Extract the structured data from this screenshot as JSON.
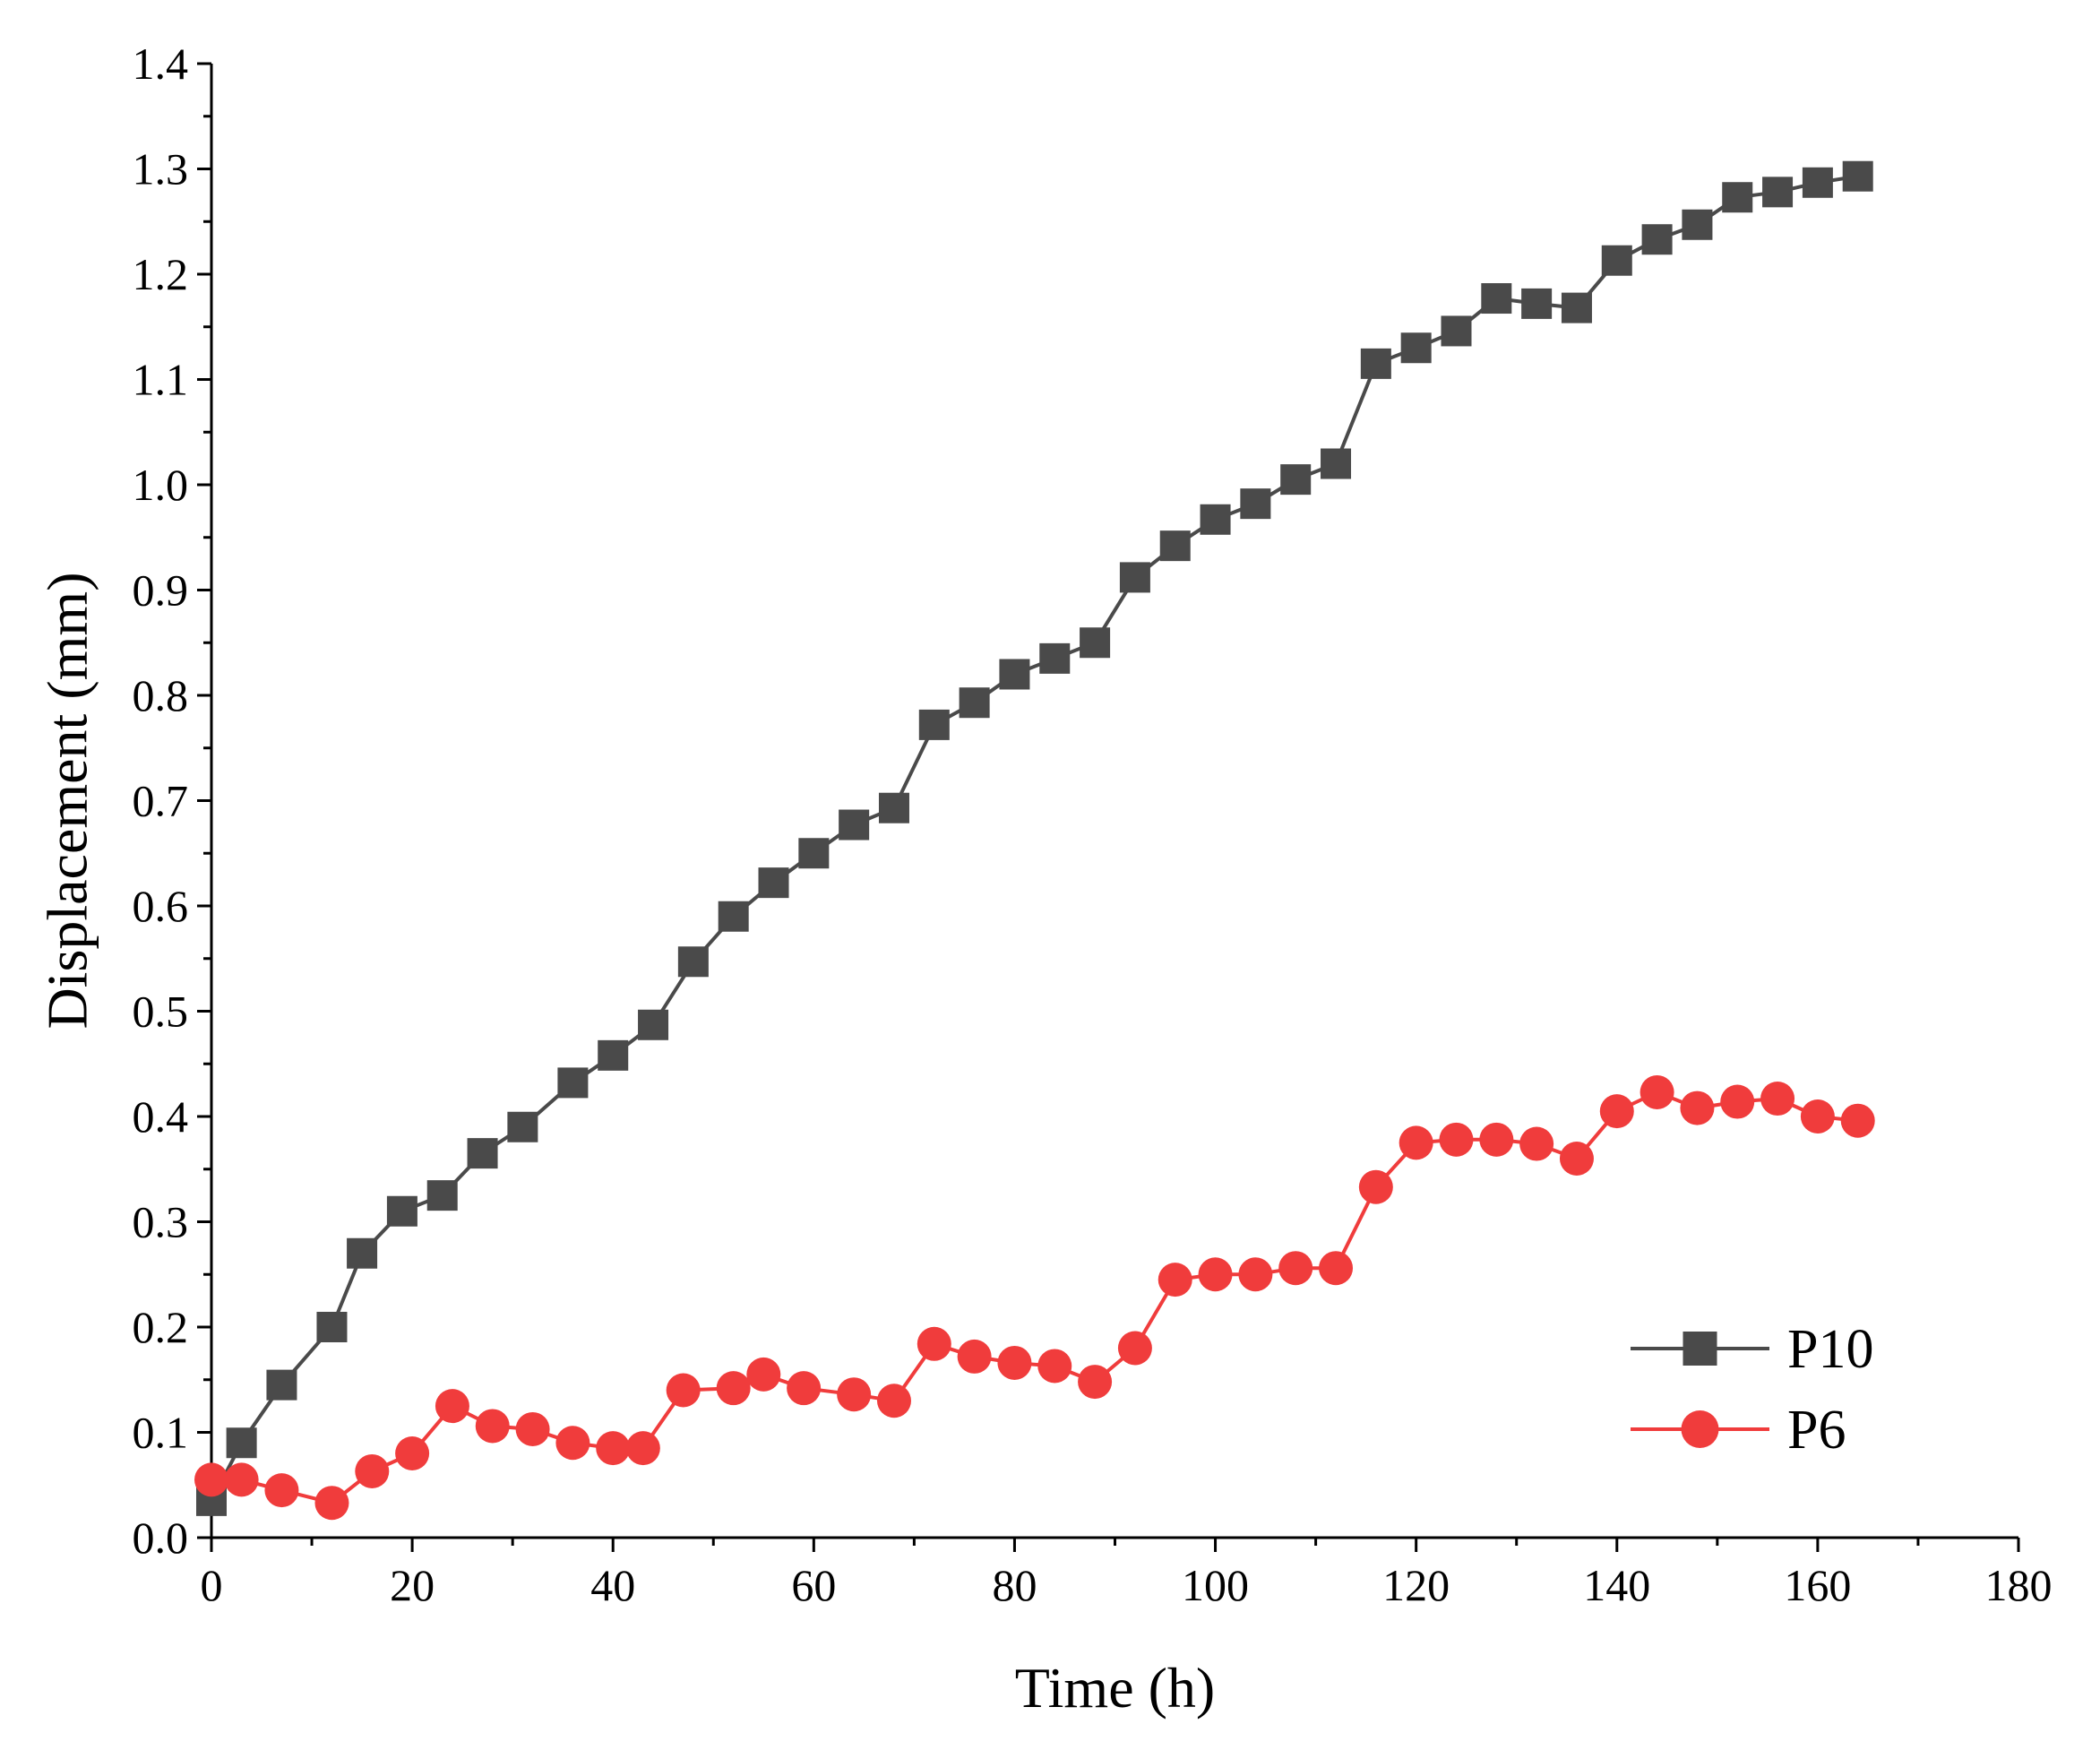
{
  "chart_data": {
    "type": "line",
    "title": "",
    "xlabel": "Time (h)",
    "ylabel": "Displacement (mm)",
    "xlim": [
      0,
      180
    ],
    "ylim": [
      0.0,
      1.4
    ],
    "xticks": [
      "0",
      "20",
      "40",
      "60",
      "80",
      "100",
      "120",
      "140",
      "160",
      "180"
    ],
    "yticks": [
      "0.0",
      "0.1",
      "0.2",
      "0.3",
      "0.4",
      "0.5",
      "0.6",
      "0.7",
      "0.8",
      "0.9",
      "1.0",
      "1.1",
      "1.2",
      "1.3",
      "1.4"
    ],
    "grid": false,
    "legend_position": "bottom-right",
    "series": [
      {
        "name": "P10",
        "color": "#4a4a4a",
        "marker": "square",
        "x": [
          0,
          3,
          7,
          12,
          15,
          19,
          23,
          27,
          31,
          36,
          40,
          44,
          48,
          52,
          56,
          60,
          64,
          68,
          72,
          76,
          80,
          84,
          88,
          92,
          96,
          100,
          104,
          108,
          112,
          116,
          120,
          124,
          128,
          132,
          136,
          140,
          144,
          148,
          152,
          156,
          160,
          164
        ],
        "y": [
          0.035,
          0.09,
          0.145,
          0.2,
          0.27,
          0.31,
          0.325,
          0.365,
          0.39,
          0.432,
          0.458,
          0.487,
          0.547,
          0.59,
          0.622,
          0.65,
          0.677,
          0.693,
          0.772,
          0.793,
          0.82,
          0.835,
          0.85,
          0.912,
          0.942,
          0.967,
          0.982,
          1.005,
          1.02,
          1.115,
          1.13,
          1.146,
          1.177,
          1.172,
          1.168,
          1.213,
          1.233,
          1.247,
          1.273,
          1.278,
          1.287,
          1.293
        ]
      },
      {
        "name": "P6",
        "color": "#f03c3c",
        "marker": "circle",
        "x": [
          0,
          3,
          7,
          12,
          16,
          20,
          24,
          28,
          32,
          36,
          40,
          43,
          47,
          52,
          55,
          59,
          64,
          68,
          72,
          76,
          80,
          84,
          88,
          92,
          96,
          100,
          104,
          108,
          112,
          116,
          120,
          124,
          128,
          132,
          136,
          140,
          144,
          148,
          152,
          156,
          160,
          164
        ],
        "y": [
          0.055,
          0.055,
          0.045,
          0.033,
          0.063,
          0.08,
          0.125,
          0.106,
          0.103,
          0.09,
          0.085,
          0.085,
          0.14,
          0.142,
          0.155,
          0.142,
          0.136,
          0.13,
          0.184,
          0.172,
          0.166,
          0.163,
          0.148,
          0.18,
          0.245,
          0.25,
          0.25,
          0.256,
          0.256,
          0.333,
          0.375,
          0.378,
          0.378,
          0.374,
          0.36,
          0.405,
          0.423,
          0.408,
          0.414,
          0.417,
          0.4,
          0.396
        ]
      }
    ]
  }
}
